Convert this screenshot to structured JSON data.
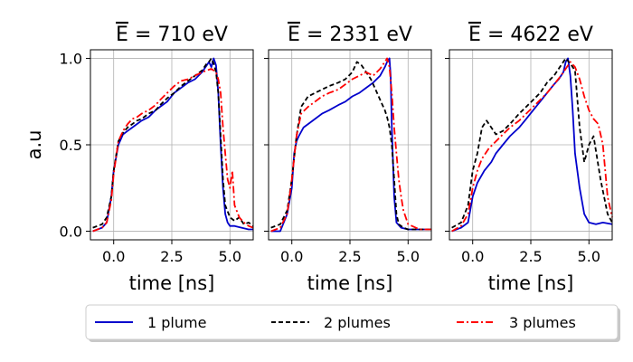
{
  "chart_data": {
    "type": "line",
    "ylabel": "a.u",
    "xlabel": "time [ns]",
    "xlim": [
      -1.0,
      6.0
    ],
    "ylim": [
      -0.05,
      1.05
    ],
    "xticks": [
      0.0,
      2.5,
      5.0
    ],
    "xtick_labels": [
      "0.0",
      "2.5",
      "5.0"
    ],
    "yticks": [
      0.0,
      0.5,
      1.0
    ],
    "ytick_labels": [
      "0.0",
      "0.5",
      "1.0"
    ],
    "grid": true,
    "legend": {
      "placement": "bottom",
      "entries": [
        "1 plume",
        "2 plumes",
        "3 plumes"
      ]
    },
    "series_styles": [
      {
        "name": "1 plume",
        "color": "#0000cc",
        "dash": "solid"
      },
      {
        "name": "2 plumes",
        "color": "#000000",
        "dash": "dashed"
      },
      {
        "name": "3 plumes",
        "color": "#ff0000",
        "dash": "dashdot"
      }
    ],
    "panels": [
      {
        "title_prefix": "E",
        "title_suffix": " = 710 eV",
        "series": [
          {
            "name": "1 plume",
            "x": [
              -0.9,
              -0.5,
              -0.3,
              -0.1,
              0.0,
              0.2,
              0.4,
              0.6,
              0.8,
              1.0,
              1.2,
              1.5,
              1.8,
              2.0,
              2.3,
              2.6,
              2.9,
              3.2,
              3.5,
              3.8,
              4.0,
              4.1,
              4.2,
              4.3,
              4.4,
              4.5,
              4.6,
              4.7,
              4.8,
              4.9,
              5.0,
              5.2,
              5.5,
              5.8,
              6.0
            ],
            "y": [
              0.0,
              0.02,
              0.05,
              0.2,
              0.35,
              0.5,
              0.56,
              0.58,
              0.6,
              0.62,
              0.64,
              0.66,
              0.7,
              0.72,
              0.75,
              0.8,
              0.83,
              0.86,
              0.88,
              0.92,
              0.96,
              0.98,
              0.95,
              1.0,
              0.96,
              0.8,
              0.5,
              0.25,
              0.1,
              0.05,
              0.03,
              0.03,
              0.02,
              0.01,
              0.01
            ]
          },
          {
            "name": "2 plumes",
            "x": [
              -0.9,
              -0.5,
              -0.3,
              -0.1,
              0.0,
              0.2,
              0.4,
              0.6,
              0.8,
              1.0,
              1.2,
              1.5,
              1.8,
              2.0,
              2.3,
              2.6,
              2.9,
              3.2,
              3.5,
              3.8,
              4.0,
              4.1,
              4.2,
              4.3,
              4.4,
              4.5,
              4.6,
              4.7,
              4.8,
              5.0,
              5.2,
              5.4,
              5.6,
              5.8,
              6.0
            ],
            "y": [
              0.02,
              0.04,
              0.08,
              0.2,
              0.35,
              0.52,
              0.57,
              0.6,
              0.62,
              0.64,
              0.65,
              0.68,
              0.7,
              0.73,
              0.77,
              0.8,
              0.84,
              0.87,
              0.9,
              0.93,
              0.97,
              0.98,
              1.0,
              0.97,
              0.92,
              0.8,
              0.55,
              0.3,
              0.15,
              0.08,
              0.06,
              0.08,
              0.04,
              0.05,
              0.03
            ]
          },
          {
            "name": "3 plumes",
            "x": [
              -0.9,
              -0.5,
              -0.3,
              -0.1,
              0.0,
              0.2,
              0.4,
              0.6,
              0.8,
              1.0,
              1.2,
              1.5,
              1.8,
              2.0,
              2.3,
              2.6,
              2.9,
              3.2,
              3.5,
              3.8,
              4.0,
              4.2,
              4.4,
              4.5,
              4.6,
              4.7,
              4.8,
              4.9,
              5.0,
              5.1,
              5.2,
              5.4,
              5.6,
              5.8,
              6.0
            ],
            "y": [
              0.0,
              0.02,
              0.05,
              0.18,
              0.33,
              0.52,
              0.58,
              0.62,
              0.65,
              0.66,
              0.68,
              0.7,
              0.73,
              0.76,
              0.8,
              0.84,
              0.87,
              0.88,
              0.9,
              0.92,
              0.93,
              0.94,
              0.92,
              0.88,
              0.8,
              0.6,
              0.45,
              0.3,
              0.25,
              0.35,
              0.15,
              0.08,
              0.05,
              0.03,
              0.02
            ]
          }
        ]
      },
      {
        "title_prefix": "E",
        "title_suffix": " = 2331 eV",
        "series": [
          {
            "name": "1 plume",
            "x": [
              -0.9,
              -0.5,
              -0.2,
              0.0,
              0.1,
              0.2,
              0.3,
              0.5,
              0.7,
              1.0,
              1.3,
              1.6,
              2.0,
              2.3,
              2.6,
              2.9,
              3.2,
              3.5,
              3.8,
              4.0,
              4.1,
              4.2,
              4.25,
              4.3,
              4.4,
              4.5,
              4.7,
              5.0,
              5.5,
              6.0
            ],
            "y": [
              0.0,
              0.0,
              0.1,
              0.25,
              0.45,
              0.52,
              0.55,
              0.6,
              0.62,
              0.65,
              0.68,
              0.7,
              0.73,
              0.75,
              0.78,
              0.8,
              0.83,
              0.86,
              0.9,
              0.95,
              0.98,
              1.0,
              0.9,
              0.6,
              0.2,
              0.05,
              0.02,
              0.01,
              0.01,
              0.01
            ]
          },
          {
            "name": "2 plumes",
            "x": [
              -0.9,
              -0.5,
              -0.2,
              0.0,
              0.2,
              0.4,
              0.7,
              1.0,
              1.3,
              1.6,
              2.0,
              2.3,
              2.6,
              2.8,
              3.0,
              3.2,
              3.4,
              3.6,
              3.8,
              4.0,
              4.1,
              4.2,
              4.3,
              4.4,
              4.5,
              4.6,
              4.8,
              5.0,
              5.5,
              6.0
            ],
            "y": [
              0.02,
              0.04,
              0.12,
              0.3,
              0.55,
              0.72,
              0.78,
              0.8,
              0.82,
              0.84,
              0.86,
              0.88,
              0.92,
              0.98,
              0.96,
              0.92,
              0.88,
              0.82,
              0.76,
              0.7,
              0.66,
              0.6,
              0.5,
              0.3,
              0.1,
              0.04,
              0.02,
              0.01,
              0.01,
              0.01
            ]
          },
          {
            "name": "3 plumes",
            "x": [
              -0.9,
              -0.5,
              -0.2,
              0.0,
              0.2,
              0.4,
              0.7,
              1.0,
              1.3,
              1.6,
              2.0,
              2.3,
              2.6,
              2.9,
              3.2,
              3.5,
              3.8,
              4.0,
              4.1,
              4.2,
              4.3,
              4.4,
              4.5,
              4.6,
              4.7,
              4.8,
              5.0,
              5.5,
              6.0
            ],
            "y": [
              0.0,
              0.02,
              0.1,
              0.3,
              0.55,
              0.68,
              0.72,
              0.75,
              0.78,
              0.8,
              0.82,
              0.85,
              0.88,
              0.9,
              0.92,
              0.9,
              0.94,
              0.98,
              1.0,
              0.95,
              0.8,
              0.6,
              0.45,
              0.3,
              0.2,
              0.12,
              0.04,
              0.01,
              0.01
            ]
          }
        ]
      },
      {
        "title_prefix": "E",
        "title_suffix": " = 4622 eV",
        "series": [
          {
            "name": "1 plume",
            "x": [
              -0.9,
              -0.5,
              -0.2,
              0.0,
              0.2,
              0.5,
              0.8,
              1.0,
              1.3,
              1.6,
              2.0,
              2.3,
              2.6,
              2.9,
              3.2,
              3.5,
              3.7,
              3.9,
              4.0,
              4.1,
              4.2,
              4.3,
              4.4,
              4.6,
              4.8,
              5.0,
              5.3,
              5.6,
              6.0
            ],
            "y": [
              0.0,
              0.02,
              0.05,
              0.2,
              0.28,
              0.35,
              0.4,
              0.45,
              0.5,
              0.55,
              0.6,
              0.65,
              0.7,
              0.75,
              0.8,
              0.85,
              0.88,
              0.92,
              0.98,
              1.0,
              0.9,
              0.7,
              0.45,
              0.25,
              0.1,
              0.05,
              0.04,
              0.05,
              0.04
            ]
          },
          {
            "name": "2 plumes",
            "x": [
              -0.9,
              -0.5,
              -0.2,
              0.0,
              0.2,
              0.4,
              0.6,
              0.8,
              1.0,
              1.3,
              1.6,
              2.0,
              2.3,
              2.6,
              2.9,
              3.2,
              3.5,
              3.8,
              4.0,
              4.2,
              4.4,
              4.6,
              4.8,
              5.0,
              5.2,
              5.5,
              5.8,
              6.0
            ],
            "y": [
              0.02,
              0.05,
              0.15,
              0.35,
              0.45,
              0.6,
              0.64,
              0.6,
              0.56,
              0.58,
              0.62,
              0.68,
              0.72,
              0.76,
              0.8,
              0.86,
              0.9,
              0.96,
              1.0,
              0.97,
              0.93,
              0.6,
              0.4,
              0.5,
              0.55,
              0.3,
              0.1,
              0.05
            ]
          },
          {
            "name": "3 plumes",
            "x": [
              -0.9,
              -0.5,
              -0.2,
              0.0,
              0.2,
              0.4,
              0.7,
              1.0,
              1.3,
              1.6,
              2.0,
              2.3,
              2.6,
              2.9,
              3.2,
              3.5,
              3.8,
              4.0,
              4.2,
              4.4,
              4.6,
              4.8,
              5.0,
              5.2,
              5.4,
              5.6,
              5.8,
              6.0
            ],
            "y": [
              0.0,
              0.03,
              0.1,
              0.25,
              0.35,
              0.42,
              0.48,
              0.52,
              0.56,
              0.6,
              0.64,
              0.68,
              0.72,
              0.76,
              0.8,
              0.85,
              0.9,
              0.94,
              0.98,
              0.95,
              0.88,
              0.78,
              0.7,
              0.65,
              0.62,
              0.5,
              0.2,
              0.08
            ]
          }
        ]
      }
    ]
  }
}
